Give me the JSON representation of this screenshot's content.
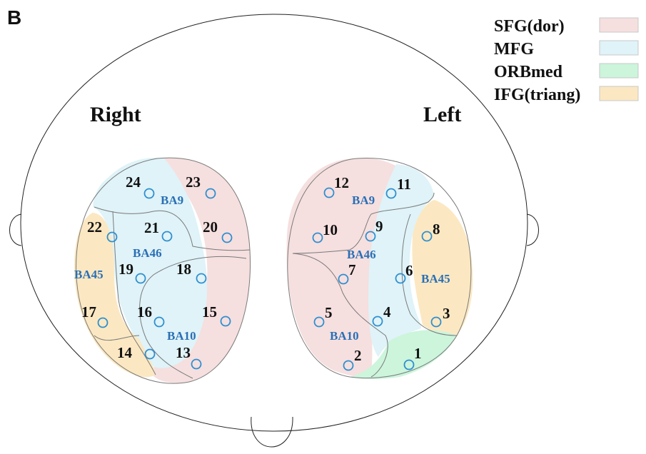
{
  "panel_label": "B",
  "hemispheres": {
    "right": "Right",
    "left": "Left"
  },
  "legend": [
    {
      "label": "SFG(dor)",
      "color": "#f6dfdf"
    },
    {
      "label": "MFG",
      "color": "#dff3f8"
    },
    {
      "label": "ORBmed",
      "color": "#ccf5dc"
    },
    {
      "label": "IFG(triang)",
      "color": "#fbe8c2"
    }
  ],
  "brodmann_labels": {
    "right": [
      "BA9",
      "BA46",
      "BA45",
      "BA10"
    ],
    "left": [
      "BA9",
      "BA46",
      "BA45",
      "BA10"
    ]
  },
  "channels": [
    "1",
    "2",
    "3",
    "4",
    "5",
    "6",
    "7",
    "8",
    "9",
    "10",
    "11",
    "12",
    "13",
    "14",
    "15",
    "16",
    "17",
    "18",
    "19",
    "20",
    "21",
    "22",
    "23",
    "24"
  ]
}
